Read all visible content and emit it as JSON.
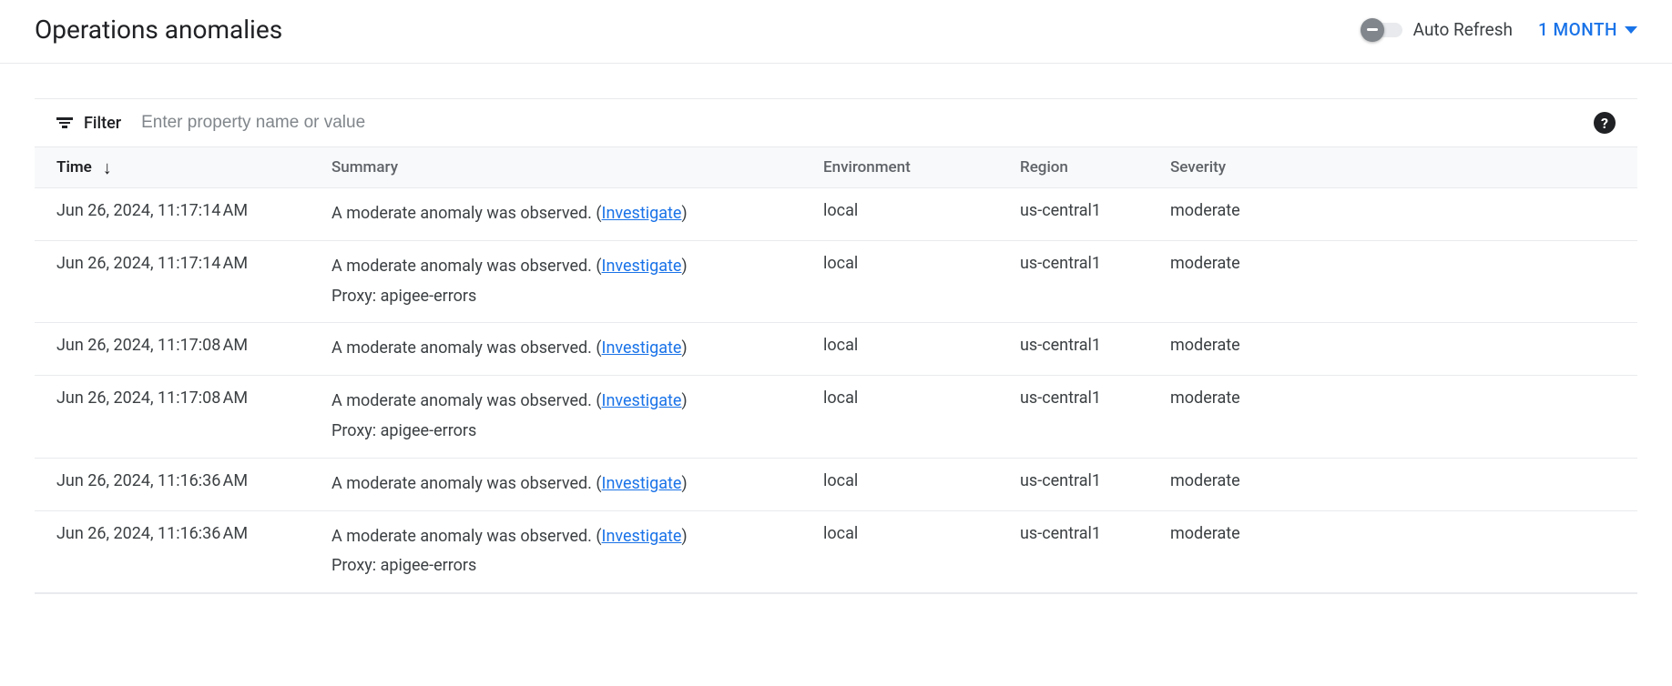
{
  "header": {
    "title": "Operations anomalies",
    "autoRefresh": {
      "label": "Auto Refresh",
      "enabled": false,
      "toggleColor": "#80868b",
      "trackColor": "#e8eaed"
    },
    "timeRange": {
      "label": "1 MONTH",
      "color": "#1a73e8"
    }
  },
  "filter": {
    "label": "Filter",
    "placeholder": "Enter property name or value"
  },
  "columns": {
    "time": "Time",
    "summary": "Summary",
    "environment": "Environment",
    "region": "Region",
    "severity": "Severity"
  },
  "sort": {
    "column": "time",
    "direction": "desc"
  },
  "summaryText": "A moderate anomaly was observed.",
  "investigateLabel": "Investigate",
  "proxyPrefix": "Proxy: ",
  "rows": [
    {
      "time": "Jun 26, 2024, 11:17:14 AM",
      "proxy": null,
      "environment": "local",
      "region": "us-central1",
      "severity": "moderate"
    },
    {
      "time": "Jun 26, 2024, 11:17:14 AM",
      "proxy": "apigee-errors",
      "environment": "local",
      "region": "us-central1",
      "severity": "moderate"
    },
    {
      "time": "Jun 26, 2024, 11:17:08 AM",
      "proxy": null,
      "environment": "local",
      "region": "us-central1",
      "severity": "moderate"
    },
    {
      "time": "Jun 26, 2024, 11:17:08 AM",
      "proxy": "apigee-errors",
      "environment": "local",
      "region": "us-central1",
      "severity": "moderate"
    },
    {
      "time": "Jun 26, 2024, 11:16:36 AM",
      "proxy": null,
      "environment": "local",
      "region": "us-central1",
      "severity": "moderate"
    },
    {
      "time": "Jun 26, 2024, 11:16:36 AM",
      "proxy": "apigee-errors",
      "environment": "local",
      "region": "us-central1",
      "severity": "moderate"
    }
  ],
  "colors": {
    "text": "#202124",
    "textSecondary": "#5f6368",
    "textBody": "#3c4043",
    "link": "#1a73e8",
    "border": "#e8eaed",
    "headerBg": "#f8f9fa",
    "placeholder": "#80868b"
  }
}
